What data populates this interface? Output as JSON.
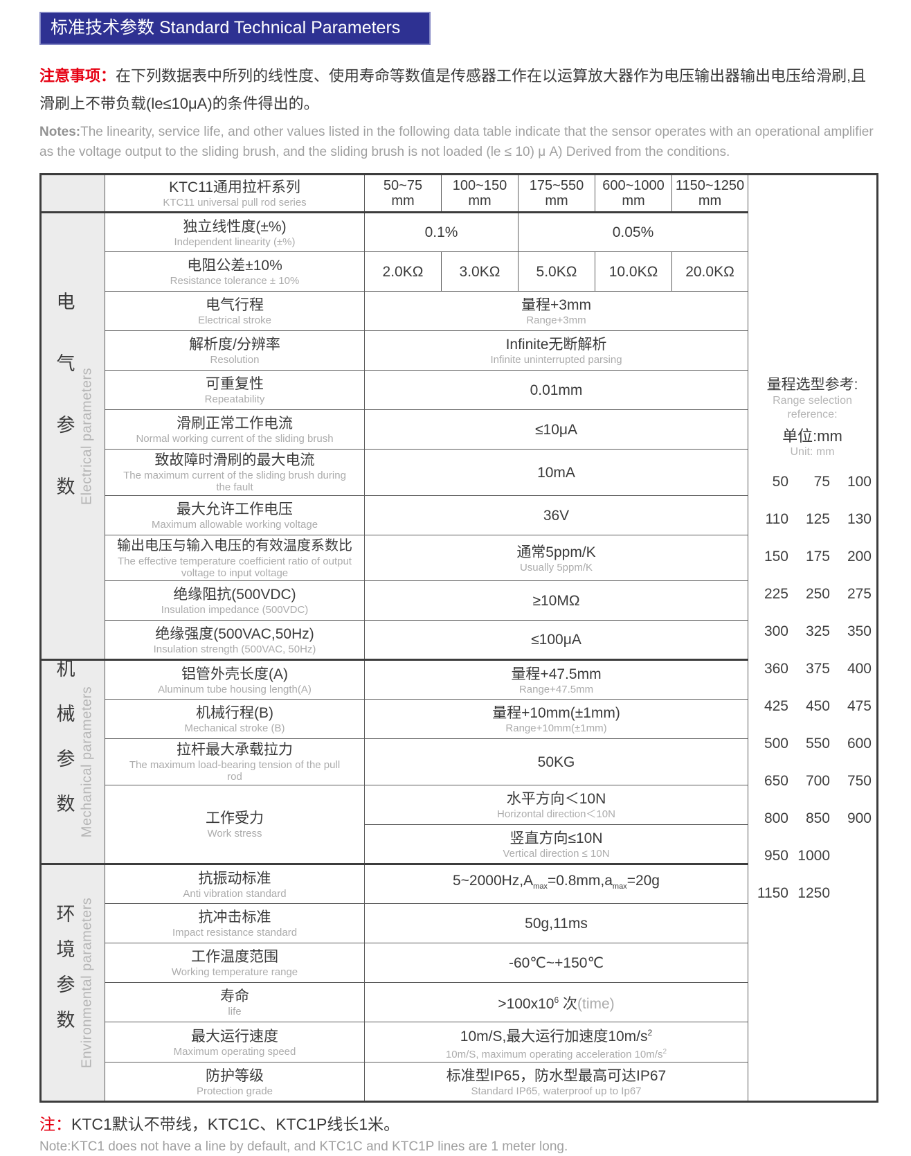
{
  "colors": {
    "header_bg": "#2e3192",
    "accent_red": "#e60012",
    "text_dark": "#3a3a3a",
    "text_gray": "#ababab",
    "category_bg": "#ececec"
  },
  "header_bar": {
    "title": "标准技术参数 Standard Technical Parameters"
  },
  "notice": {
    "label_zh": "注意事项：",
    "text_zh": "在下列数据表中所列的线性度、使用寿命等数值是传感器工作在以运算放大器作为电压输出器输出电压给滑刷,且滑刷上不带负载(le≤10μA)的条件得出的。",
    "label_en": "Notes:",
    "text_en": "The linearity, service life, and other values listed in the following data table indicate that the sensor operates with an operational amplifier as the voltage output to the sliding brush, and the sliding brush is not loaded (le ≤ 10) μ A) Derived from the conditions."
  },
  "table": {
    "series": {
      "zh": "KTC11通用拉杆系列",
      "en": "KTC11 universal pull rod series"
    },
    "ranges": [
      {
        "r": "50~75",
        "u": "mm"
      },
      {
        "r": "100~150",
        "u": "mm"
      },
      {
        "r": "175~550",
        "u": "mm"
      },
      {
        "r": "600~1000",
        "u": "mm"
      },
      {
        "r": "1150~1250",
        "u": "mm"
      }
    ],
    "cat_electrical": {
      "zh": "电气参数",
      "en": "Electrical parameters"
    },
    "cat_mechanical": {
      "zh": "机械参数",
      "en": "Mechanical parameters"
    },
    "cat_environmental": {
      "zh": "环境参数",
      "en": "Environmental parameters"
    },
    "linearity": {
      "zh": "独立线性度(±%)",
      "en": "Independent linearity (±%)",
      "v1": "0.1%",
      "v2": "0.05%"
    },
    "resistance": {
      "zh": "电阻公差±10%",
      "en": "Resistance tolerance ± 10%",
      "cells": [
        "2.0KΩ",
        "3.0KΩ",
        "5.0KΩ",
        "10.0KΩ",
        "20.0KΩ"
      ]
    },
    "stroke": {
      "zh": "电气行程",
      "en": "Electrical stroke",
      "v_zh": "量程+3mm",
      "v_en": "Range+3mm"
    },
    "resolution": {
      "zh": "解析度/分辨率",
      "en": "Resolution",
      "v_zh": "Infinite无断解析",
      "v_en": "Infinite uninterrupted parsing"
    },
    "repeatability": {
      "zh": "可重复性",
      "en": "Repeatability",
      "v_zh": "0.01mm"
    },
    "current_normal": {
      "zh": "滑刷正常工作电流",
      "en": "Normal working current of the sliding brush",
      "v_zh": "≤10μA"
    },
    "current_fault": {
      "zh": "致故障时滑刷的最大电流",
      "en": "The maximum current of the sliding brush during the fault",
      "v_zh": "10mA"
    },
    "voltage_max": {
      "zh": "最大允许工作电压",
      "en": "Maximum allowable working voltage",
      "v_zh": "36V"
    },
    "temp_coeff": {
      "zh": "输出电压与输入电压的有效温度系数比",
      "en": "The effective temperature coefficient ratio of output voltage to input voltage",
      "v_zh": "通常5ppm/K",
      "v_en": "Usually 5ppm/K"
    },
    "insul_impedance": {
      "zh": "绝缘阻抗(500VDC)",
      "en": "Insulation impedance (500VDC)",
      "v_zh": "≥10MΩ"
    },
    "insul_strength": {
      "zh": "绝缘强度(500VAC,50Hz)",
      "en": "Insulation strength (500VAC, 50Hz)",
      "v_zh": "≤100μA"
    },
    "tube_length": {
      "zh": "铝管外壳长度(A)",
      "en": "Aluminum tube housing length(A)",
      "v_zh": "量程+47.5mm",
      "v_en": "Range+47.5mm"
    },
    "mech_stroke": {
      "zh": "机械行程(B)",
      "en": "Mechanical stroke (B)",
      "v_zh": "量程+10mm(±1mm)",
      "v_en": "Range+10mm(±1mm)"
    },
    "tension": {
      "zh": "拉杆最大承载拉力",
      "en": "The maximum load-bearing tension of the pull rod",
      "v_zh": "50KG"
    },
    "stress": {
      "zh": "工作受力",
      "en": "Work stress",
      "h_zh": "水平方向＜10N",
      "h_en": "Horizontal direction＜10N",
      "v_zh": "竖直方向≤10N",
      "v_en": "Vertical direction ≤ 10N"
    },
    "vibration": {
      "zh": "抗振动标准",
      "en": "Anti vibration standard",
      "p1": "5~2000Hz,A",
      "sub1": "max",
      "p2": "=0.8mm,a",
      "sub2": "max",
      "p3": "=20g"
    },
    "impact": {
      "zh": "抗冲击标准",
      "en": "Impact resistance standard",
      "v_zh": "50g,11ms"
    },
    "temp_range": {
      "zh": "工作温度范围",
      "en": "Working temperature range",
      "v_zh": "-60℃~+150℃"
    },
    "life": {
      "zh": "寿命",
      "en": "life",
      "p1": ">100x10",
      "sup": "6",
      "p2": " 次",
      "p3": "(time)"
    },
    "speed": {
      "zh": "最大运行速度",
      "en": "Maximum operating speed",
      "z1": "10m/S,最大运行加速度10m/s",
      "zsup": "2",
      "e1": "10m/S, maximum operating acceleration 10m/s",
      "esup": "2"
    },
    "protection": {
      "zh": "防护等级",
      "en": "Protection grade",
      "v_zh": "标准型IP65，防水型最高可达IP67",
      "v_en": "Standard IP65, waterproof up to Ip67"
    }
  },
  "reference": {
    "title_zh": "量程选型参考:",
    "title_en": [
      "Range selection",
      "reference:"
    ],
    "unit_zh": "单位:mm",
    "unit_en": "Unit: mm",
    "rows": [
      [
        "50",
        "75",
        "100"
      ],
      [
        "110",
        "125",
        "130"
      ],
      [
        "150",
        "175",
        "200"
      ],
      [
        "225",
        "250",
        "275"
      ],
      [
        "300",
        "325",
        "350"
      ],
      [
        "360",
        "375",
        "400"
      ],
      [
        "425",
        "450",
        "475"
      ],
      [
        "500",
        "550",
        "600"
      ],
      [
        "650",
        "700",
        "750"
      ],
      [
        "800",
        "850",
        "900"
      ],
      [
        "950",
        "1000"
      ],
      [
        "1150",
        "1250"
      ]
    ]
  },
  "footnote": {
    "label_zh": "注：",
    "text_zh": "KTC1默认不带线，KTC1C、KTC1P线长1米。",
    "label_en": "Note:",
    "text_en": "KTC1 does not have a line by default, and KTC1C and KTC1P lines are 1 meter long."
  }
}
